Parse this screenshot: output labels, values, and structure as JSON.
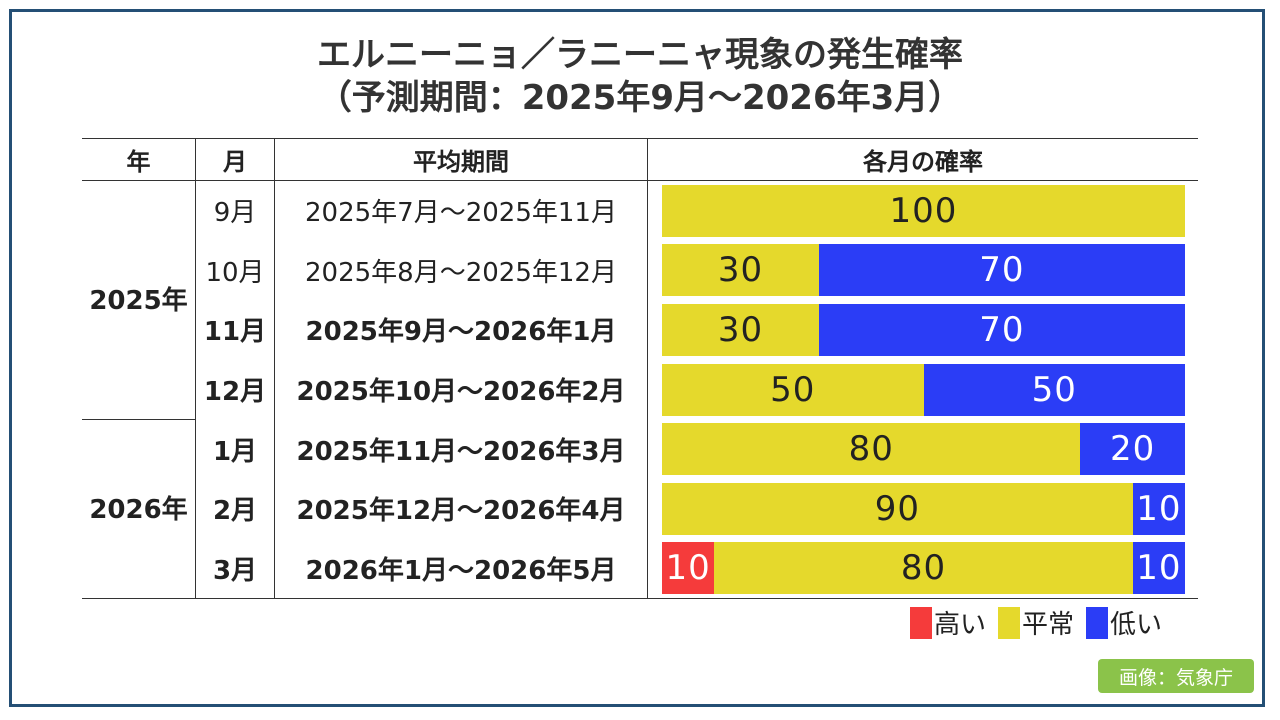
{
  "title_line1": "エルニーニョ／ラニーニャ現象の発生確率",
  "title_line2": "（予測期間：2025年9月～2026年3月）",
  "headers": {
    "year": "年",
    "month": "月",
    "period": "平均期間",
    "prob": "各月の確率"
  },
  "years": [
    "2025年",
    "2026年"
  ],
  "colors": {
    "high": "#f53b3b",
    "normal": "#e5d92c",
    "low": "#2b3df6"
  },
  "chart_data": {
    "type": "bar",
    "stacked": true,
    "orientation": "horizontal",
    "title": "エルニーニョ／ラニーニャ現象の発生確率",
    "subtitle": "（予測期間：2025年9月～2026年3月）",
    "xlim": [
      0,
      100
    ],
    "categories": [
      "9月",
      "10月",
      "11月",
      "12月",
      "1月",
      "2月",
      "3月"
    ],
    "periods": [
      "2025年7月～2025年11月",
      "2025年8月～2025年12月",
      "2025年9月～2026年1月",
      "2025年10月～2026年2月",
      "2025年11月～2026年3月",
      "2025年12月～2026年4月",
      "2026年1月～2026年5月"
    ],
    "series": [
      {
        "name": "高い",
        "key": "high",
        "values": [
          0,
          0,
          0,
          0,
          0,
          0,
          10
        ]
      },
      {
        "name": "平常",
        "key": "normal",
        "values": [
          100,
          30,
          30,
          50,
          80,
          90,
          80
        ]
      },
      {
        "name": "低い",
        "key": "low",
        "values": [
          0,
          70,
          70,
          50,
          20,
          10,
          10
        ]
      }
    ],
    "legend": [
      "高い",
      "平常",
      "低い"
    ]
  },
  "credit": "画像：気象庁"
}
